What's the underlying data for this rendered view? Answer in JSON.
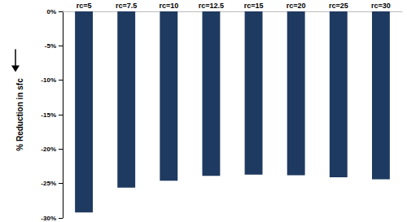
{
  "chart_data": {
    "type": "bar",
    "y_label": "% Reduction in sfc",
    "categories": [
      "rc=5",
      "rc=7.5",
      "rc=10",
      "rc=12.5",
      "rc=15",
      "rc=20",
      "rc=25",
      "rc=30"
    ],
    "values": [
      -29.2,
      -25.6,
      -24.6,
      -23.9,
      -23.7,
      -23.8,
      -24.1,
      -24.4
    ],
    "color": "#1f3a60",
    "ylim": [
      -30,
      0
    ],
    "yticks": [
      {
        "value": -30,
        "label": "-30%"
      },
      {
        "value": -25,
        "label": "-25%"
      },
      {
        "value": -20,
        "label": "-20%"
      },
      {
        "value": -15,
        "label": "-15%"
      },
      {
        "value": -10,
        "label": "-10%"
      },
      {
        "value": -5,
        "label": "-5%"
      },
      {
        "value": 0,
        "label": "0%"
      }
    ],
    "grid": false
  }
}
